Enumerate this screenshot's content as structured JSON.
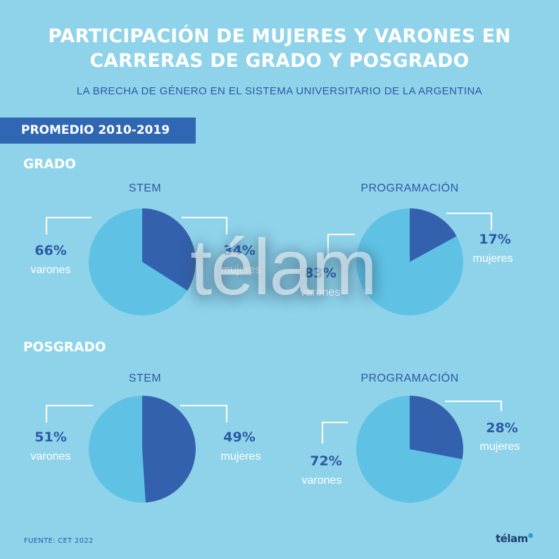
{
  "header": {
    "title_line1": "PARTICIPACIÓN DE MUJERES Y VARONES EN",
    "title_line2": "CARRERAS DE GRADO Y POSGRADO",
    "subtitle": "LA BRECHA DE GÉNERO EN EL SISTEMA UNIVERSITARIO DE LA ARGENTINA",
    "banner": "PROMEDIO 2010-2019"
  },
  "sections": {
    "grado": "GRADO",
    "posgrado": "POSGRADO"
  },
  "footer": {
    "source": "FUENTE: CET 2022",
    "logo": "télam"
  },
  "watermark": "télam",
  "colors": {
    "background": "#8fd3ea",
    "varones": "#5fc2e4",
    "mujeres": "#3461ad",
    "text_dark": "#2a5aa6",
    "banner": "#2f67b3"
  },
  "chart_data": [
    {
      "type": "pie",
      "section": "GRADO",
      "title": "STEM",
      "categories": [
        "mujeres",
        "varones"
      ],
      "values": [
        34,
        66
      ],
      "labels": [
        "34%",
        "66%"
      ]
    },
    {
      "type": "pie",
      "section": "GRADO",
      "title": "PROGRAMACIÓN",
      "categories": [
        "mujeres",
        "varones"
      ],
      "values": [
        17,
        83
      ],
      "labels": [
        "17%",
        "83%"
      ]
    },
    {
      "type": "pie",
      "section": "POSGRADO",
      "title": "STEM",
      "categories": [
        "mujeres",
        "varones"
      ],
      "values": [
        49,
        51
      ],
      "labels": [
        "49%",
        "51%"
      ]
    },
    {
      "type": "pie",
      "section": "POSGRADO",
      "title": "PROGRAMACIÓN",
      "categories": [
        "mujeres",
        "varones"
      ],
      "values": [
        28,
        72
      ],
      "labels": [
        "28%",
        "72%"
      ]
    }
  ]
}
